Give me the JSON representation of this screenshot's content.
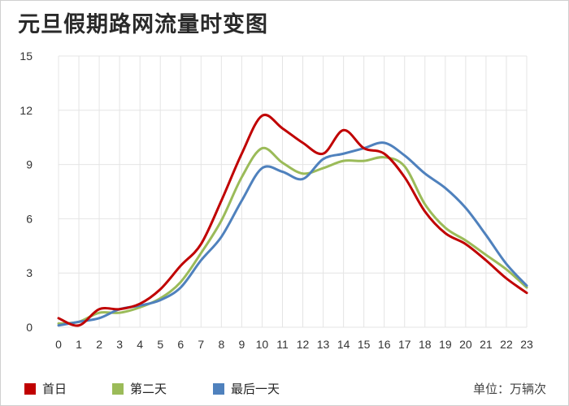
{
  "chart_data": {
    "type": "line",
    "title": "元旦假期路网流量时变图",
    "unit_label": "单位：万辆次",
    "x": [
      0,
      1,
      2,
      3,
      4,
      5,
      6,
      7,
      8,
      9,
      10,
      11,
      12,
      13,
      14,
      15,
      16,
      17,
      18,
      19,
      20,
      21,
      22,
      23
    ],
    "ylim": [
      0,
      15
    ],
    "yticks": [
      0,
      3,
      6,
      9,
      12,
      15
    ],
    "grid": true,
    "legend_position": "bottom",
    "series": [
      {
        "name": "首日",
        "color": "#c00000",
        "values": [
          0.5,
          0.1,
          1.0,
          1.0,
          1.3,
          2.1,
          3.4,
          4.6,
          7.0,
          9.6,
          11.7,
          11.0,
          10.2,
          9.6,
          10.9,
          9.9,
          9.6,
          8.3,
          6.4,
          5.2,
          4.6,
          3.7,
          2.7,
          1.9
        ]
      },
      {
        "name": "第二天",
        "color": "#9bbb59",
        "values": [
          0.2,
          0.3,
          0.8,
          0.8,
          1.1,
          1.6,
          2.5,
          4.1,
          5.9,
          8.3,
          9.9,
          9.1,
          8.5,
          8.8,
          9.2,
          9.2,
          9.4,
          8.9,
          6.8,
          5.5,
          4.8,
          4.0,
          3.2,
          2.2
        ]
      },
      {
        "name": "最后一天",
        "color": "#4f81bd",
        "values": [
          0.1,
          0.3,
          0.5,
          1.0,
          1.2,
          1.5,
          2.2,
          3.7,
          5.0,
          7.0,
          8.8,
          8.6,
          8.2,
          9.3,
          9.6,
          9.9,
          10.2,
          9.5,
          8.5,
          7.7,
          6.6,
          5.1,
          3.5,
          2.3
        ]
      }
    ]
  }
}
